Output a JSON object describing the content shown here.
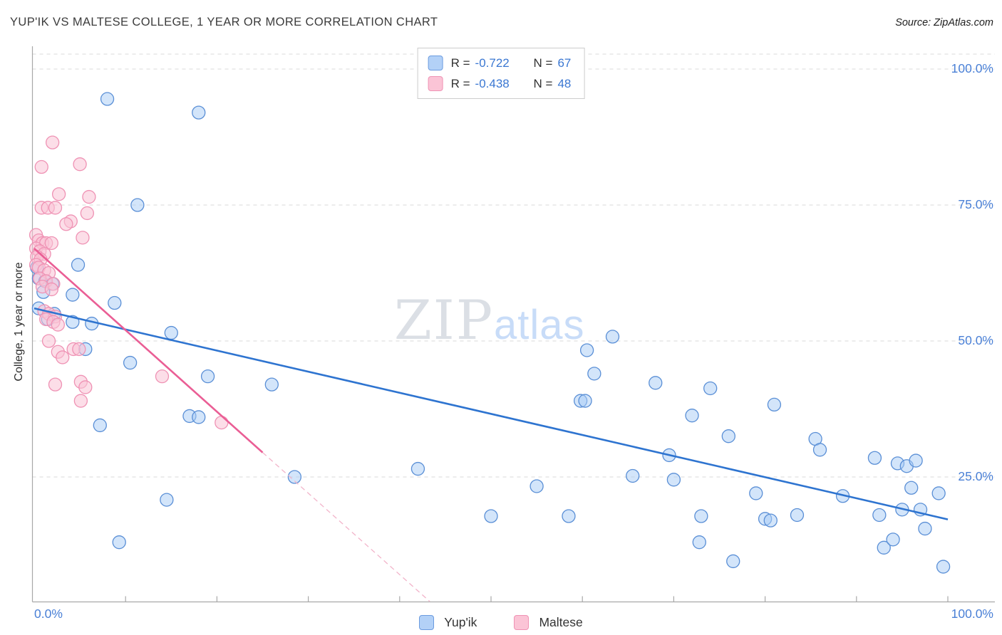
{
  "header": {
    "title": "YUP'IK VS MALTESE COLLEGE, 1 YEAR OR MORE CORRELATION CHART",
    "source": "Source: ZipAtlas.com"
  },
  "axes": {
    "y_label": "College, 1 year or more",
    "y_ticks": [
      "100.0%",
      "75.0%",
      "50.0%",
      "25.0%"
    ],
    "x_min_label": "0.0%",
    "x_max_label": "100.0%"
  },
  "legend": {
    "r_prefix": "R =",
    "n_prefix": "N =",
    "series": [
      {
        "name": "Yup'ik",
        "r": "-0.722",
        "n": "67"
      },
      {
        "name": "Maltese",
        "r": "-0.438",
        "n": "48"
      }
    ]
  },
  "watermark": {
    "part1": "ZIP",
    "part2": "atlas"
  },
  "colors": {
    "yupik_fill": "#a8cbf5",
    "yupik_stroke": "#5a8fd6",
    "yupik_trend": "#2e74d0",
    "maltese_fill": "#fac3d5",
    "maltese_stroke": "#ef92b4",
    "maltese_trend": "#ea5e95",
    "axis_label_blue": "#4a80d6"
  },
  "chart_data": {
    "type": "scatter",
    "title": "YUP'IK VS MALTESE COLLEGE, 1 YEAR OR MORE CORRELATION CHART",
    "ylabel": "College, 1 year or more",
    "xlim": [
      0,
      100
    ],
    "ylim": [
      0,
      100
    ],
    "grid": "horizontal-dashed",
    "y_gridlines": [
      25,
      50,
      75,
      100
    ],
    "x_tick_step": 10,
    "legend_position": "bottom-center",
    "series": [
      {
        "id": "yupik",
        "name": "Yup'ik",
        "r": -0.722,
        "n": 67,
        "points": [
          [
            8,
            94.5
          ],
          [
            18,
            92
          ],
          [
            11.3,
            75
          ],
          [
            4.8,
            64
          ],
          [
            0.3,
            63.5
          ],
          [
            0.5,
            61.5
          ],
          [
            1.2,
            61
          ],
          [
            2,
            60.5
          ],
          [
            1,
            59
          ],
          [
            4.2,
            58.5
          ],
          [
            8.8,
            57
          ],
          [
            0.5,
            56
          ],
          [
            2.2,
            55
          ],
          [
            1.5,
            54
          ],
          [
            4.2,
            53.5
          ],
          [
            6.3,
            53.2
          ],
          [
            15,
            51.5
          ],
          [
            5.6,
            48.5
          ],
          [
            10.5,
            46
          ],
          [
            19,
            43.5
          ],
          [
            26,
            42
          ],
          [
            17,
            36.2
          ],
          [
            18,
            36
          ],
          [
            7.2,
            34.5
          ],
          [
            14.5,
            20.8
          ],
          [
            9.3,
            13
          ],
          [
            28.5,
            25
          ],
          [
            42,
            26.5
          ],
          [
            50,
            17.8
          ],
          [
            55,
            23.3
          ],
          [
            58.5,
            17.8
          ],
          [
            60.5,
            48.3
          ],
          [
            63.3,
            50.8
          ],
          [
            61.3,
            44
          ],
          [
            59.8,
            39
          ],
          [
            60.3,
            39
          ],
          [
            65.5,
            25.2
          ],
          [
            68,
            42.3
          ],
          [
            69.5,
            29
          ],
          [
            70,
            24.5
          ],
          [
            72,
            36.3
          ],
          [
            73,
            17.8
          ],
          [
            72.8,
            13
          ],
          [
            74,
            41.3
          ],
          [
            76,
            32.5
          ],
          [
            76.5,
            9.5
          ],
          [
            79,
            22
          ],
          [
            80,
            17.3
          ],
          [
            80.6,
            17
          ],
          [
            81,
            38.3
          ],
          [
            83.5,
            18
          ],
          [
            85.5,
            32
          ],
          [
            86,
            30
          ],
          [
            88.5,
            21.5
          ],
          [
            92,
            28.5
          ],
          [
            92.5,
            18
          ],
          [
            93,
            12
          ],
          [
            94,
            13.5
          ],
          [
            94.5,
            27.5
          ],
          [
            95,
            19
          ],
          [
            95.5,
            27
          ],
          [
            96,
            23
          ],
          [
            96.5,
            28
          ],
          [
            97,
            19
          ],
          [
            97.5,
            15.5
          ],
          [
            99,
            22
          ],
          [
            99.5,
            8.5
          ]
        ]
      },
      {
        "id": "maltese",
        "name": "Maltese",
        "r": -0.438,
        "n": 48,
        "points": [
          [
            2,
            86.5
          ],
          [
            0.8,
            82
          ],
          [
            5,
            82.5
          ],
          [
            2.7,
            77
          ],
          [
            6,
            76.5
          ],
          [
            0.8,
            74.5
          ],
          [
            1.5,
            74.5
          ],
          [
            2.3,
            74.5
          ],
          [
            5.8,
            73.5
          ],
          [
            4,
            72
          ],
          [
            3.5,
            71.5
          ],
          [
            5.3,
            69
          ],
          [
            0.2,
            69.5
          ],
          [
            0.5,
            68.5
          ],
          [
            0.9,
            68
          ],
          [
            1.3,
            68
          ],
          [
            1.9,
            68
          ],
          [
            0.2,
            67
          ],
          [
            0.6,
            66.5
          ],
          [
            1.1,
            66
          ],
          [
            0.3,
            65.5
          ],
          [
            0.7,
            65
          ],
          [
            0.2,
            64
          ],
          [
            0.5,
            63.5
          ],
          [
            1.1,
            63
          ],
          [
            1.6,
            62.5
          ],
          [
            0.6,
            61.5
          ],
          [
            1.3,
            61
          ],
          [
            2.1,
            60.5
          ],
          [
            0.9,
            60
          ],
          [
            1.9,
            59.5
          ],
          [
            1.1,
            55.5
          ],
          [
            1.6,
            55
          ],
          [
            2.3,
            54.5
          ],
          [
            1.3,
            54
          ],
          [
            2.1,
            53.5
          ],
          [
            2.6,
            53
          ],
          [
            1.6,
            50
          ],
          [
            2.6,
            48
          ],
          [
            3.1,
            47
          ],
          [
            4.3,
            48.5
          ],
          [
            4.9,
            48.5
          ],
          [
            2.3,
            42
          ],
          [
            5.1,
            42.5
          ],
          [
            5.6,
            41.5
          ],
          [
            5.1,
            39
          ],
          [
            14,
            43.5
          ],
          [
            20.5,
            35
          ]
        ]
      }
    ],
    "trend_lines": [
      {
        "series": "yupik",
        "x1": 0,
        "y1": 56,
        "x2": 100,
        "y2": 17.2,
        "style": "solid"
      },
      {
        "series": "maltese",
        "x1": 0,
        "y1": 67,
        "x2": 25,
        "y2": 29.5,
        "style": "solid"
      },
      {
        "series": "maltese",
        "x1": 25,
        "y1": 29.5,
        "x2": 43.3,
        "y2": 2.1,
        "style": "dashed"
      }
    ]
  }
}
